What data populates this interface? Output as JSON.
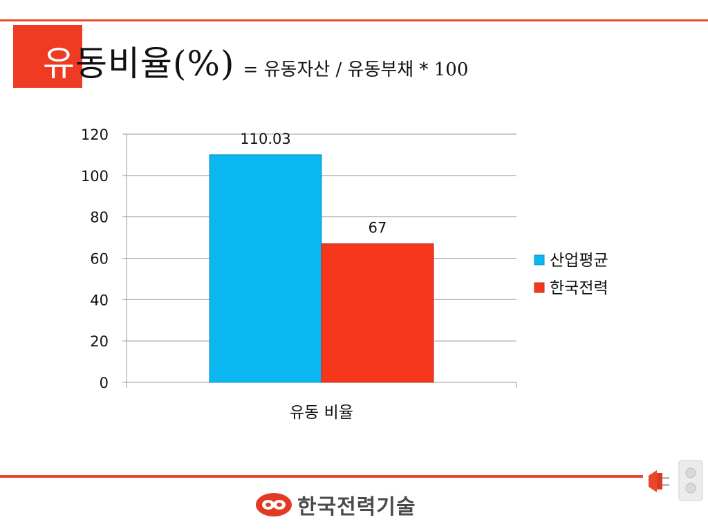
{
  "slide": {
    "title_first_char": "유",
    "title_rest": "동비율(%)",
    "formula": "= 유동자산 / 유동부채 * 100",
    "logo_text": "한국전력기술"
  },
  "colors": {
    "accent": "#ee3b22",
    "series_1": "#0ab7f0",
    "series_2": "#f5351c"
  },
  "icons": [
    "plug-icon",
    "outlet-icon",
    "company-logo-icon"
  ],
  "chart_data": {
    "type": "bar",
    "categories": [
      "유동 비율"
    ],
    "series": [
      {
        "name": "산업평균",
        "values": [
          110.03
        ],
        "label": "110.03"
      },
      {
        "name": "한국전력",
        "values": [
          67
        ],
        "label": "67"
      }
    ],
    "ylim": [
      0,
      120
    ],
    "yticks": [
      "0",
      "20",
      "40",
      "60",
      "80",
      "100",
      "120"
    ],
    "grid": true,
    "legend": "right"
  }
}
